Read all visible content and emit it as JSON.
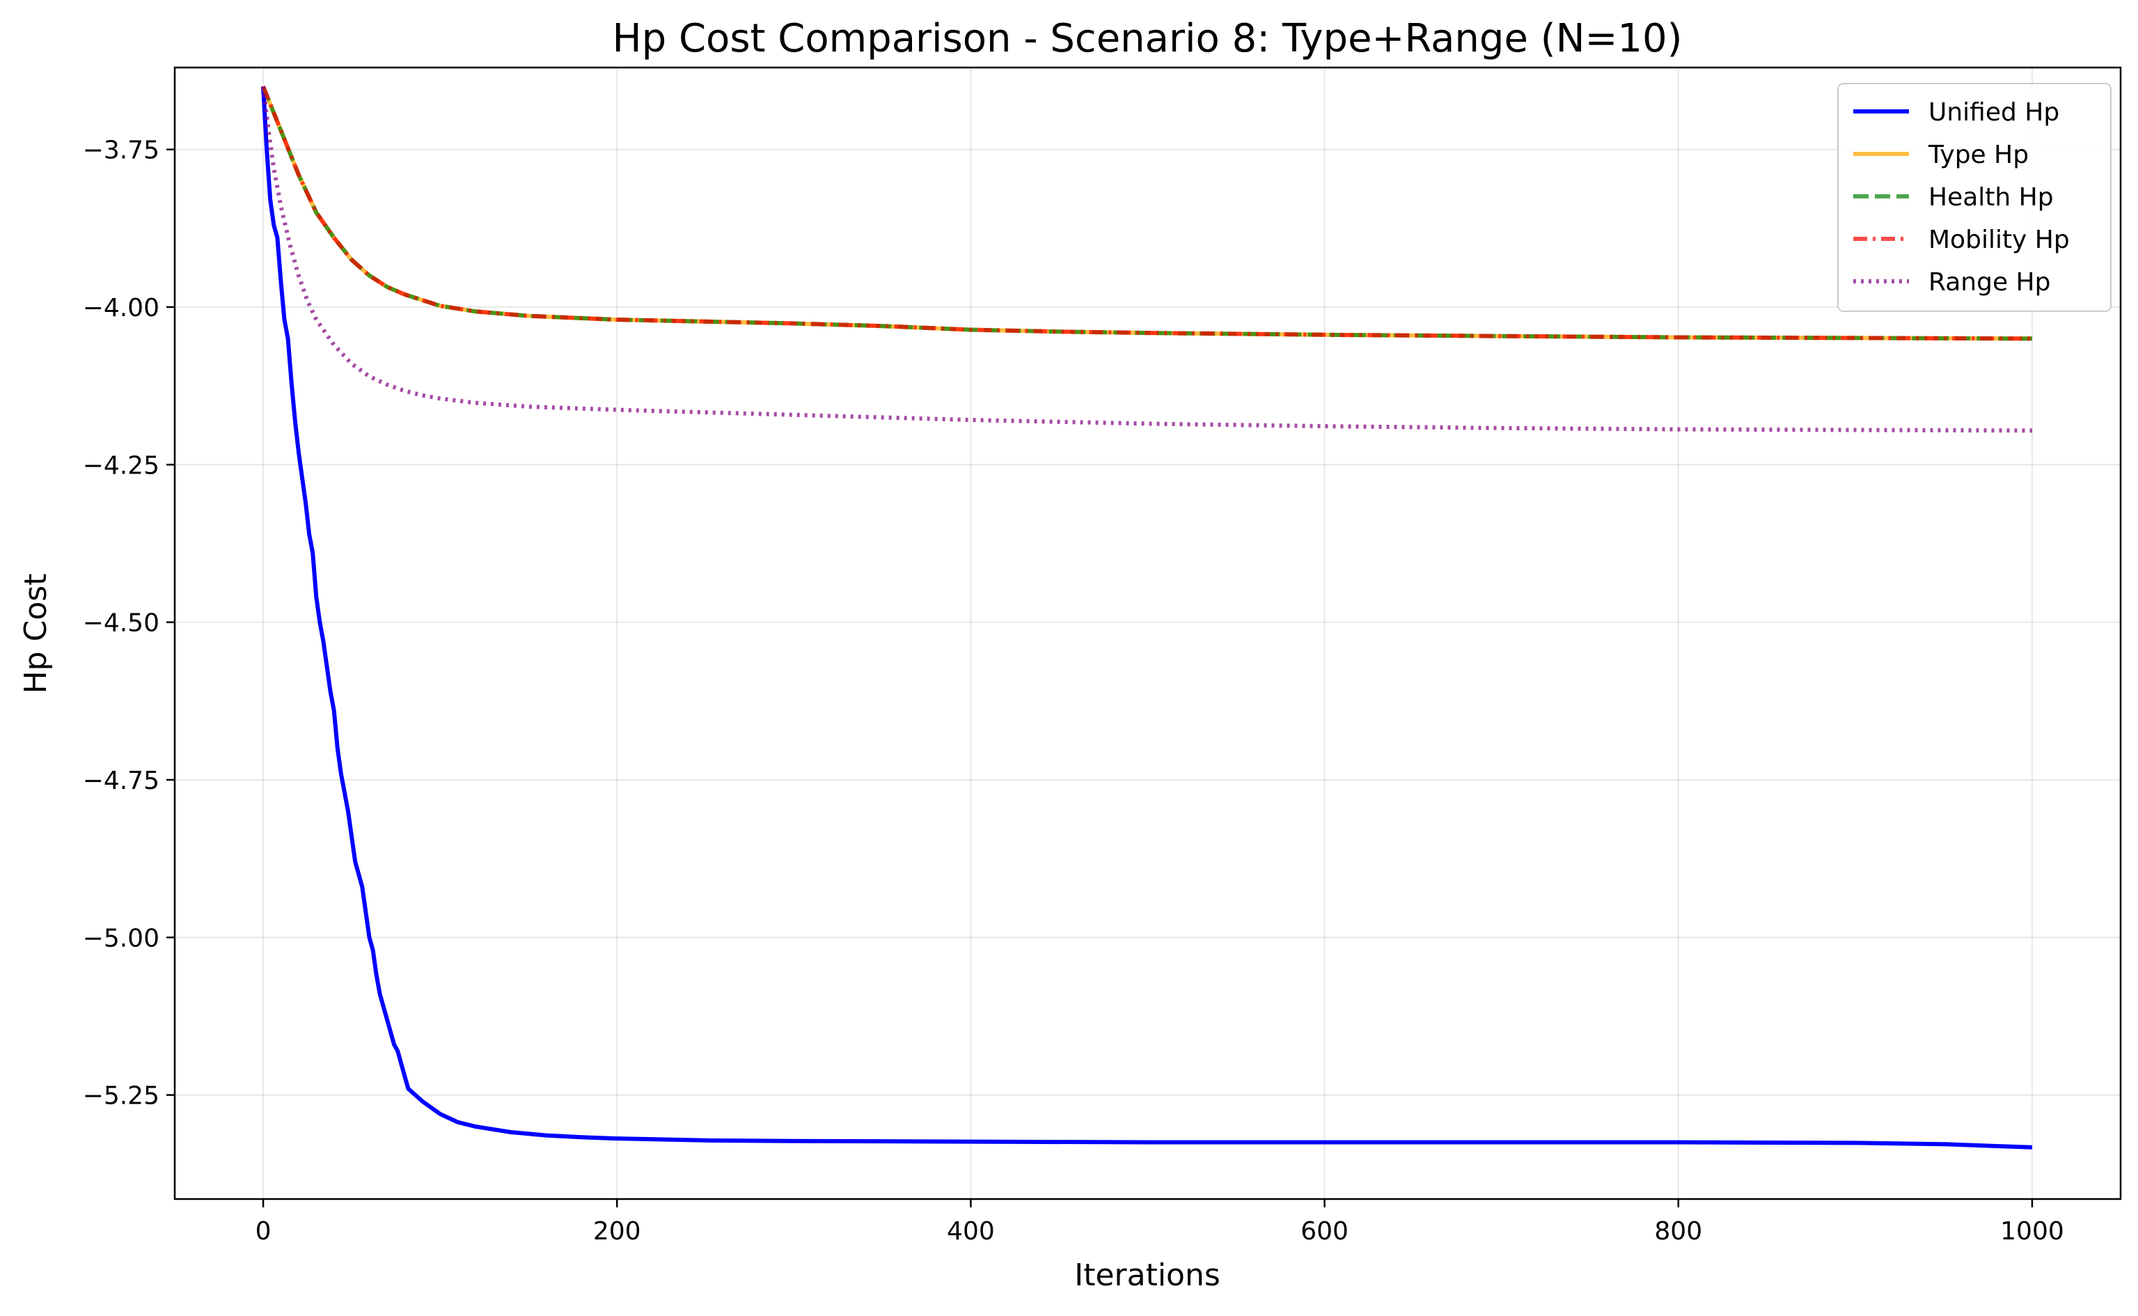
{
  "chart_data": {
    "type": "line",
    "title": "Hp Cost Comparison - Scenario 8: Type+Range (N=10)",
    "xlabel": "Iterations",
    "ylabel": "Hp Cost",
    "xlim": [
      -50,
      1050
    ],
    "ylim": [
      -5.415,
      -3.62
    ],
    "xticks": [
      0,
      200,
      400,
      600,
      800,
      1000
    ],
    "xtick_labels": [
      "0",
      "200",
      "400",
      "600",
      "800",
      "1000"
    ],
    "yticks": [
      -3.75,
      -4.0,
      -4.25,
      -4.5,
      -4.75,
      -5.0,
      -5.25
    ],
    "ytick_labels": [
      "−3.75",
      "−4.00",
      "−4.25",
      "−4.50",
      "−4.75",
      "−5.00",
      "−5.25"
    ],
    "grid": true,
    "legend_position": "top-right",
    "series": [
      {
        "name": "Unified Hp",
        "color": "#0000ff",
        "dash": "solid",
        "opacity": 1.0,
        "points": [
          [
            0,
            -3.65
          ],
          [
            2,
            -3.75
          ],
          [
            4,
            -3.83
          ],
          [
            6,
            -3.87
          ],
          [
            8,
            -3.89
          ],
          [
            10,
            -3.96
          ],
          [
            12,
            -4.02
          ],
          [
            14,
            -4.05
          ],
          [
            16,
            -4.12
          ],
          [
            18,
            -4.18
          ],
          [
            20,
            -4.23
          ],
          [
            22,
            -4.27
          ],
          [
            24,
            -4.31
          ],
          [
            26,
            -4.36
          ],
          [
            28,
            -4.39
          ],
          [
            30,
            -4.46
          ],
          [
            32,
            -4.5
          ],
          [
            34,
            -4.53
          ],
          [
            36,
            -4.57
          ],
          [
            38,
            -4.61
          ],
          [
            40,
            -4.64
          ],
          [
            42,
            -4.7
          ],
          [
            44,
            -4.74
          ],
          [
            46,
            -4.77
          ],
          [
            48,
            -4.8
          ],
          [
            50,
            -4.84
          ],
          [
            52,
            -4.88
          ],
          [
            54,
            -4.9
          ],
          [
            56,
            -4.92
          ],
          [
            58,
            -4.96
          ],
          [
            60,
            -5.0
          ],
          [
            62,
            -5.02
          ],
          [
            64,
            -5.06
          ],
          [
            66,
            -5.09
          ],
          [
            68,
            -5.11
          ],
          [
            70,
            -5.13
          ],
          [
            72,
            -5.15
          ],
          [
            74,
            -5.17
          ],
          [
            76,
            -5.18
          ],
          [
            78,
            -5.2
          ],
          [
            80,
            -5.22
          ],
          [
            82,
            -5.24
          ],
          [
            86,
            -5.25
          ],
          [
            90,
            -5.26
          ],
          [
            100,
            -5.28
          ],
          [
            110,
            -5.293
          ],
          [
            120,
            -5.3
          ],
          [
            140,
            -5.309
          ],
          [
            160,
            -5.314
          ],
          [
            180,
            -5.317
          ],
          [
            200,
            -5.319
          ],
          [
            250,
            -5.322
          ],
          [
            300,
            -5.323
          ],
          [
            400,
            -5.324
          ],
          [
            500,
            -5.325
          ],
          [
            600,
            -5.325
          ],
          [
            700,
            -5.325
          ],
          [
            800,
            -5.325
          ],
          [
            900,
            -5.326
          ],
          [
            950,
            -5.328
          ],
          [
            980,
            -5.331
          ],
          [
            1000,
            -5.333
          ]
        ]
      },
      {
        "name": "Type Hp",
        "color": "#ffa500",
        "dash": "solid",
        "opacity": 0.75,
        "points": [
          [
            0,
            -3.65
          ],
          [
            10,
            -3.72
          ],
          [
            20,
            -3.79
          ],
          [
            30,
            -3.85
          ],
          [
            40,
            -3.89
          ],
          [
            50,
            -3.925
          ],
          [
            60,
            -3.95
          ],
          [
            70,
            -3.968
          ],
          [
            80,
            -3.98
          ],
          [
            100,
            -3.998
          ],
          [
            120,
            -4.007
          ],
          [
            150,
            -4.014
          ],
          [
            200,
            -4.02
          ],
          [
            250,
            -4.023
          ],
          [
            300,
            -4.026
          ],
          [
            350,
            -4.03
          ],
          [
            400,
            -4.036
          ],
          [
            450,
            -4.039
          ],
          [
            500,
            -4.041
          ],
          [
            600,
            -4.044
          ],
          [
            700,
            -4.046
          ],
          [
            800,
            -4.048
          ],
          [
            900,
            -4.049
          ],
          [
            1000,
            -4.05
          ]
        ]
      },
      {
        "name": "Health Hp",
        "color": "#008000",
        "dash": "dashed",
        "opacity": 0.7,
        "points": [
          [
            0,
            -3.65
          ],
          [
            10,
            -3.72
          ],
          [
            20,
            -3.79
          ],
          [
            30,
            -3.85
          ],
          [
            40,
            -3.89
          ],
          [
            50,
            -3.925
          ],
          [
            60,
            -3.95
          ],
          [
            70,
            -3.968
          ],
          [
            80,
            -3.98
          ],
          [
            100,
            -3.998
          ],
          [
            120,
            -4.007
          ],
          [
            150,
            -4.014
          ],
          [
            200,
            -4.02
          ],
          [
            250,
            -4.023
          ],
          [
            300,
            -4.026
          ],
          [
            350,
            -4.03
          ],
          [
            400,
            -4.036
          ],
          [
            450,
            -4.039
          ],
          [
            500,
            -4.041
          ],
          [
            600,
            -4.044
          ],
          [
            700,
            -4.046
          ],
          [
            800,
            -4.048
          ],
          [
            900,
            -4.049
          ],
          [
            1000,
            -4.05
          ]
        ]
      },
      {
        "name": "Mobility Hp",
        "color": "#ff0000",
        "dash": "dashdot",
        "opacity": 0.7,
        "points": [
          [
            0,
            -3.65
          ],
          [
            10,
            -3.72
          ],
          [
            20,
            -3.79
          ],
          [
            30,
            -3.85
          ],
          [
            40,
            -3.89
          ],
          [
            50,
            -3.925
          ],
          [
            60,
            -3.95
          ],
          [
            70,
            -3.968
          ],
          [
            80,
            -3.98
          ],
          [
            100,
            -3.998
          ],
          [
            120,
            -4.007
          ],
          [
            150,
            -4.014
          ],
          [
            200,
            -4.02
          ],
          [
            250,
            -4.023
          ],
          [
            300,
            -4.026
          ],
          [
            350,
            -4.03
          ],
          [
            400,
            -4.036
          ],
          [
            450,
            -4.039
          ],
          [
            500,
            -4.041
          ],
          [
            600,
            -4.044
          ],
          [
            700,
            -4.046
          ],
          [
            800,
            -4.048
          ],
          [
            900,
            -4.049
          ],
          [
            1000,
            -4.05
          ]
        ]
      },
      {
        "name": "Range Hp",
        "color": "#800080",
        "dash": "dotted",
        "opacity": 0.7,
        "points": [
          [
            0,
            -3.65
          ],
          [
            3,
            -3.72
          ],
          [
            6,
            -3.78
          ],
          [
            10,
            -3.84
          ],
          [
            15,
            -3.9
          ],
          [
            20,
            -3.95
          ],
          [
            25,
            -3.99
          ],
          [
            30,
            -4.02
          ],
          [
            40,
            -4.06
          ],
          [
            50,
            -4.09
          ],
          [
            60,
            -4.11
          ],
          [
            70,
            -4.123
          ],
          [
            80,
            -4.133
          ],
          [
            90,
            -4.14
          ],
          [
            100,
            -4.145
          ],
          [
            120,
            -4.152
          ],
          [
            150,
            -4.158
          ],
          [
            200,
            -4.163
          ],
          [
            250,
            -4.167
          ],
          [
            300,
            -4.171
          ],
          [
            400,
            -4.179
          ],
          [
            500,
            -4.185
          ],
          [
            600,
            -4.189
          ],
          [
            700,
            -4.192
          ],
          [
            800,
            -4.194
          ],
          [
            900,
            -4.195
          ],
          [
            1000,
            -4.196
          ]
        ]
      }
    ]
  }
}
